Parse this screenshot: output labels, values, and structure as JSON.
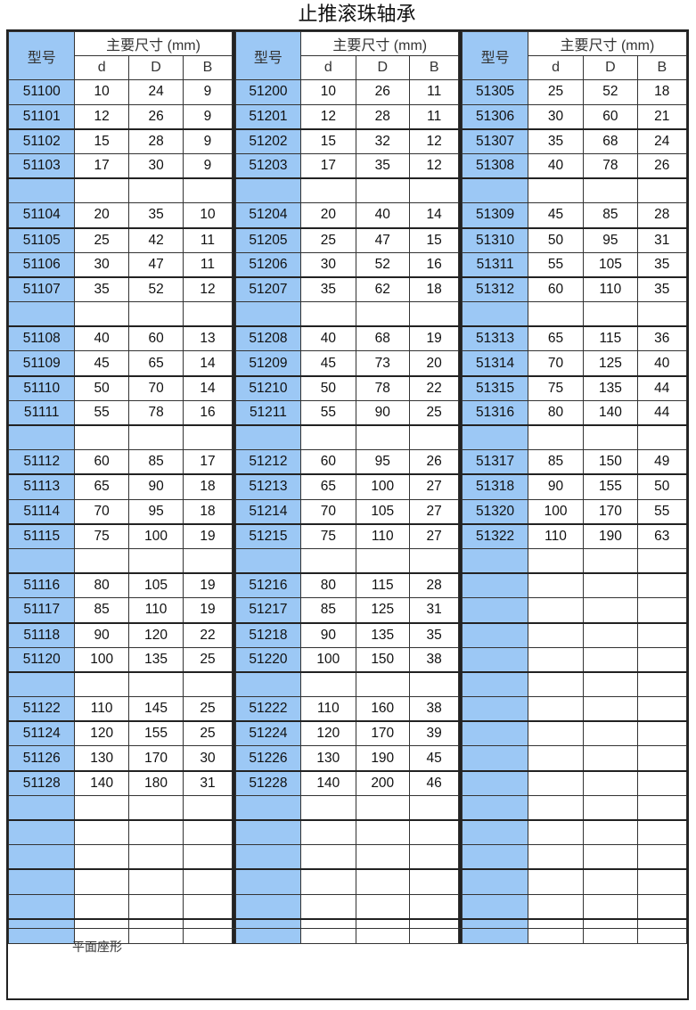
{
  "title": "止推滚珠轴承",
  "header": {
    "model": "型号",
    "dims": "主要尺寸 (mm)",
    "d": "d",
    "D": "D",
    "B": "B"
  },
  "colors": {
    "model_column": "#9cc8f5",
    "border": "#222222"
  },
  "footer": {
    "note": "平面座形"
  },
  "tables": [
    {
      "rows": [
        [
          "51100",
          "10",
          "24",
          "9"
        ],
        [
          "51101",
          "12",
          "26",
          "9"
        ],
        [
          "51102",
          "15",
          "28",
          "9"
        ],
        [
          "51103",
          "17",
          "30",
          "9"
        ],
        null,
        [
          "51104",
          "20",
          "35",
          "10"
        ],
        [
          "51105",
          "25",
          "42",
          "11"
        ],
        [
          "51106",
          "30",
          "47",
          "11"
        ],
        [
          "51107",
          "35",
          "52",
          "12"
        ],
        null,
        [
          "51108",
          "40",
          "60",
          "13"
        ],
        [
          "51109",
          "45",
          "65",
          "14"
        ],
        [
          "51110",
          "50",
          "70",
          "14"
        ],
        [
          "51111",
          "55",
          "78",
          "16"
        ],
        null,
        [
          "51112",
          "60",
          "85",
          "17"
        ],
        [
          "51113",
          "65",
          "90",
          "18"
        ],
        [
          "51114",
          "70",
          "95",
          "18"
        ],
        [
          "51115",
          "75",
          "100",
          "19"
        ],
        null,
        [
          "51116",
          "80",
          "105",
          "19"
        ],
        [
          "51117",
          "85",
          "110",
          "19"
        ],
        [
          "51118",
          "90",
          "120",
          "22"
        ],
        [
          "51120",
          "100",
          "135",
          "25"
        ],
        null,
        [
          "51122",
          "110",
          "145",
          "25"
        ],
        [
          "51124",
          "120",
          "155",
          "25"
        ],
        [
          "51126",
          "130",
          "170",
          "30"
        ],
        [
          "51128",
          "140",
          "180",
          "31"
        ],
        null,
        null,
        null,
        null,
        null,
        null
      ]
    },
    {
      "rows": [
        [
          "51200",
          "10",
          "26",
          "11"
        ],
        [
          "51201",
          "12",
          "28",
          "11"
        ],
        [
          "51202",
          "15",
          "32",
          "12"
        ],
        [
          "51203",
          "17",
          "35",
          "12"
        ],
        null,
        [
          "51204",
          "20",
          "40",
          "14"
        ],
        [
          "51205",
          "25",
          "47",
          "15"
        ],
        [
          "51206",
          "30",
          "52",
          "16"
        ],
        [
          "51207",
          "35",
          "62",
          "18"
        ],
        null,
        [
          "51208",
          "40",
          "68",
          "19"
        ],
        [
          "51209",
          "45",
          "73",
          "20"
        ],
        [
          "51210",
          "50",
          "78",
          "22"
        ],
        [
          "51211",
          "55",
          "90",
          "25"
        ],
        null,
        [
          "51212",
          "60",
          "95",
          "26"
        ],
        [
          "51213",
          "65",
          "100",
          "27"
        ],
        [
          "51214",
          "70",
          "105",
          "27"
        ],
        [
          "51215",
          "75",
          "110",
          "27"
        ],
        null,
        [
          "51216",
          "80",
          "115",
          "28"
        ],
        [
          "51217",
          "85",
          "125",
          "31"
        ],
        [
          "51218",
          "90",
          "135",
          "35"
        ],
        [
          "51220",
          "100",
          "150",
          "38"
        ],
        null,
        [
          "51222",
          "110",
          "160",
          "38"
        ],
        [
          "51224",
          "120",
          "170",
          "39"
        ],
        [
          "51226",
          "130",
          "190",
          "45"
        ],
        [
          "51228",
          "140",
          "200",
          "46"
        ],
        null,
        null,
        null,
        null,
        null,
        null
      ]
    },
    {
      "rows": [
        [
          "51305",
          "25",
          "52",
          "18"
        ],
        [
          "51306",
          "30",
          "60",
          "21"
        ],
        [
          "51307",
          "35",
          "68",
          "24"
        ],
        [
          "51308",
          "40",
          "78",
          "26"
        ],
        null,
        [
          "51309",
          "45",
          "85",
          "28"
        ],
        [
          "51310",
          "50",
          "95",
          "31"
        ],
        [
          "51311",
          "55",
          "105",
          "35"
        ],
        [
          "51312",
          "60",
          "110",
          "35"
        ],
        null,
        [
          "51313",
          "65",
          "115",
          "36"
        ],
        [
          "51314",
          "70",
          "125",
          "40"
        ],
        [
          "51315",
          "75",
          "135",
          "44"
        ],
        [
          "51316",
          "80",
          "140",
          "44"
        ],
        null,
        [
          "51317",
          "85",
          "150",
          "49"
        ],
        [
          "51318",
          "90",
          "155",
          "50"
        ],
        [
          "51320",
          "100",
          "170",
          "55"
        ],
        [
          "51322",
          "110",
          "190",
          "63"
        ],
        null,
        null,
        null,
        null,
        null,
        null,
        null,
        null,
        null,
        null,
        null,
        null,
        null,
        null,
        null,
        null
      ]
    }
  ]
}
